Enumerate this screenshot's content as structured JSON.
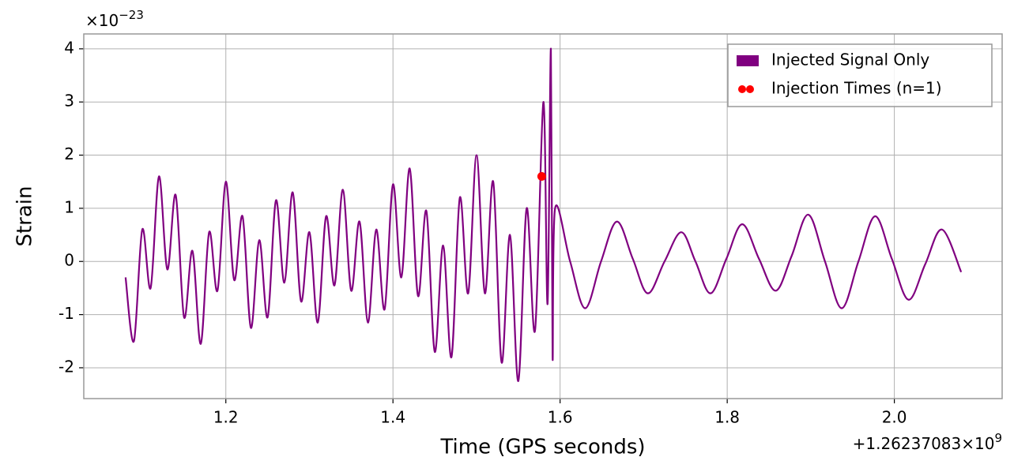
{
  "chart_data": {
    "type": "line",
    "xlabel": "Time (GPS seconds)",
    "ylabel": "Strain",
    "y_offset": {
      "base": "×10",
      "exponent": "−23"
    },
    "x_offset": {
      "base": "+1.26237083×10",
      "exponent": "9"
    },
    "xlim": [
      1.03,
      2.129
    ],
    "ylim": [
      -2.58,
      4.28
    ],
    "xticks": [
      1.2,
      1.4,
      1.6,
      1.8,
      {
        "value": 2.0,
        "label": "2.0"
      }
    ],
    "yticks": [
      -2,
      -1,
      0,
      1,
      2,
      3,
      4
    ],
    "grid": true,
    "legend": "upper right",
    "series": [
      {
        "name": "Injected Signal Only",
        "type": "line",
        "color": "#800080",
        "x": [
          1.08,
          1.09,
          1.1,
          1.11,
          1.12,
          1.13,
          1.14,
          1.15,
          1.16,
          1.17,
          1.18,
          1.19,
          1.2,
          1.21,
          1.22,
          1.23,
          1.24,
          1.25,
          1.26,
          1.27,
          1.28,
          1.29,
          1.3,
          1.31,
          1.32,
          1.33,
          1.34,
          1.35,
          1.36,
          1.37,
          1.38,
          1.39,
          1.4,
          1.41,
          1.42,
          1.43,
          1.44,
          1.45,
          1.46,
          1.47,
          1.48,
          1.49,
          1.5,
          1.51,
          1.52,
          1.53,
          1.54,
          1.55,
          1.56,
          1.57,
          1.58,
          1.585,
          1.589,
          1.591,
          1.594,
          1.612,
          1.63,
          1.649,
          1.668,
          1.687,
          1.705,
          1.725,
          1.745,
          1.762,
          1.78,
          1.799,
          1.818,
          1.838,
          1.858,
          1.877,
          1.897,
          1.917,
          1.937,
          1.957,
          1.977,
          1.997,
          2.017,
          2.037,
          2.057,
          2.08
        ],
        "values": [
          -0.3,
          -1.5,
          0.6,
          -0.5,
          1.6,
          -0.15,
          1.25,
          -1.05,
          0.2,
          -1.55,
          0.55,
          -0.55,
          1.5,
          -0.35,
          0.85,
          -1.25,
          0.4,
          -1.05,
          1.15,
          -0.4,
          1.3,
          -0.75,
          0.55,
          -1.15,
          0.85,
          -0.45,
          1.35,
          -0.55,
          0.75,
          -1.15,
          0.6,
          -0.9,
          1.45,
          -0.3,
          1.75,
          -0.65,
          0.95,
          -1.7,
          0.3,
          -1.8,
          1.2,
          -0.6,
          2.0,
          -0.6,
          1.5,
          -1.9,
          0.5,
          -2.25,
          1.0,
          -1.3,
          3.0,
          -0.8,
          4.0,
          -1.8,
          1.0,
          0.0,
          -0.88,
          0.0,
          0.75,
          0.05,
          -0.6,
          0.0,
          0.55,
          0.0,
          -0.6,
          0.05,
          0.7,
          0.05,
          -0.55,
          0.1,
          0.88,
          0.0,
          -0.88,
          0.0,
          0.85,
          0.05,
          -0.72,
          -0.05,
          0.6,
          -0.2
        ]
      },
      {
        "name": "Injection Times (n=1)",
        "type": "scatter",
        "color": "#ff0000",
        "x": [
          1.578
        ],
        "values": [
          1.6
        ]
      }
    ]
  }
}
